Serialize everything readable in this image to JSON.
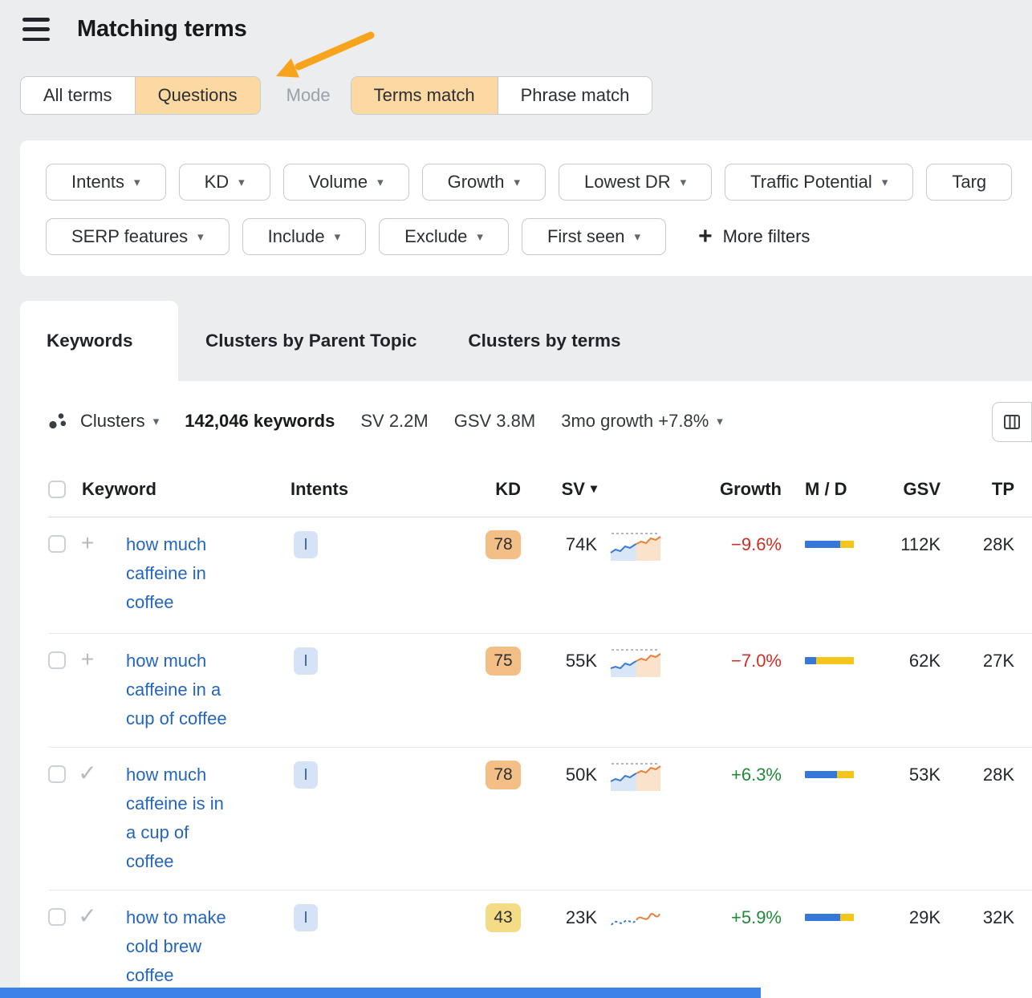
{
  "colors": {
    "accent_orange": "#f7a31c",
    "active_pill_bg": "#fcd9a3",
    "link_blue": "#2566bd",
    "growth_up_green": "#218a38",
    "growth_down_red": "#cf2e24",
    "md_blue": "#3578d9",
    "md_yellow": "#f3c51d",
    "kd_hard_bg": "#f3bf86",
    "kd_medium_bg": "#f3dc85",
    "bottom_bar_blue": "#3c82e8"
  },
  "icons": {
    "chevron_down": "▾",
    "sort_down": "▾",
    "plus": "+"
  },
  "header": {
    "title": "Matching terms"
  },
  "segments": {
    "terms_group": [
      {
        "label": "All terms",
        "active": false
      },
      {
        "label": "Questions",
        "active": true
      }
    ],
    "mode_label": "Mode",
    "match_group": [
      {
        "label": "Terms match",
        "active": true
      },
      {
        "label": "Phrase match",
        "active": false
      }
    ]
  },
  "filters": {
    "row1": [
      "Intents",
      "KD",
      "Volume",
      "Growth",
      "Lowest DR",
      "Traffic Potential",
      "Targ"
    ],
    "row2": [
      "SERP features",
      "Include",
      "Exclude",
      "First seen"
    ],
    "more_filters_label": "More filters"
  },
  "tabs": [
    {
      "label": "Keywords",
      "active": true
    },
    {
      "label": "Clusters by Parent Topic",
      "active": false
    },
    {
      "label": "Clusters by terms",
      "active": false
    }
  ],
  "toolbar": {
    "clusters_label": "Clusters",
    "keywords_count": "142,046 keywords",
    "sv_total": "SV 2.2M",
    "gsv_total": "GSV 3.8M",
    "growth_summary": "3mo growth +7.8%"
  },
  "table": {
    "headers": {
      "keyword": "Keyword",
      "intents": "Intents",
      "kd": "KD",
      "sv": "SV",
      "growth": "Growth",
      "md": "M / D",
      "gsv": "GSV",
      "tp": "TP"
    },
    "rows": [
      {
        "keyword": "how much caffeine in coffee",
        "lines": [
          "how much",
          "caffeine in",
          "coffee"
        ],
        "expander_glyph": "+",
        "intent": "I",
        "kd": "78",
        "kd_bg": "#f3bf86",
        "sv": "74K",
        "growth": "−9.6%",
        "growth_color": "#cf2e24",
        "md": {
          "blue": "68%",
          "yellow": "26%"
        },
        "gsv": "112K",
        "tp": "28K"
      },
      {
        "keyword": "how much caffeine in a cup of coffee",
        "lines": [
          "how much",
          "caffeine in a",
          "cup of coffee"
        ],
        "expander_glyph": "+",
        "intent": "I",
        "kd": "75",
        "kd_bg": "#f3bf86",
        "sv": "55K",
        "growth": "−7.0%",
        "growth_color": "#cf2e24",
        "md": {
          "blue": "22%",
          "yellow": "72%"
        },
        "gsv": "62K",
        "tp": "27K"
      },
      {
        "keyword": "how much caffeine is in a cup of coffee",
        "lines": [
          "how much",
          "caffeine is in",
          "a cup of",
          "coffee"
        ],
        "expander_glyph": "✓",
        "intent": "I",
        "kd": "78",
        "kd_bg": "#f3bf86",
        "sv": "50K",
        "growth": "+6.3%",
        "growth_color": "#218a38",
        "md": {
          "blue": "62%",
          "yellow": "32%"
        },
        "gsv": "53K",
        "tp": "28K"
      },
      {
        "keyword": "how to make cold brew coffee",
        "lines": [
          "how to make",
          "cold brew",
          "coffee"
        ],
        "expander_glyph": "✓",
        "intent": "I",
        "kd": "43",
        "kd_bg": "#f3dc85",
        "sv": "23K",
        "growth": "+5.9%",
        "growth_color": "#218a38",
        "md": {
          "blue": "68%",
          "yellow": "26%"
        },
        "gsv": "29K",
        "tp": "32K"
      }
    ]
  }
}
